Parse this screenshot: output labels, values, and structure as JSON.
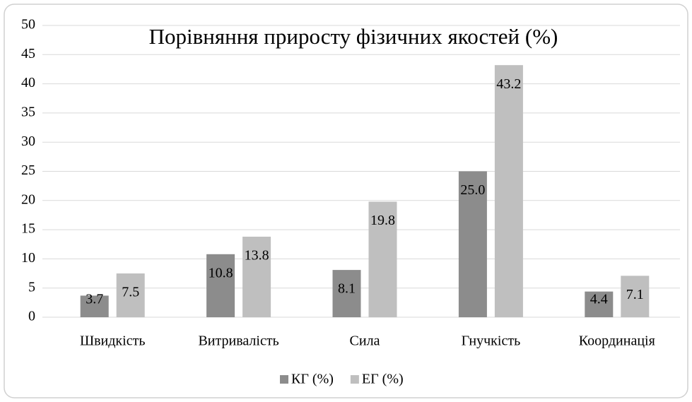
{
  "chart_data": {
    "type": "bar",
    "title": "Порівняння приросту фізичних якостей (%)",
    "categories": [
      "Швидкість",
      "Витривалість",
      "Сила",
      "Гнучкість",
      "Координація"
    ],
    "series": [
      {
        "name": "КГ (%)",
        "color": "#8c8c8c",
        "values": [
          3.7,
          10.8,
          8.1,
          25.0,
          4.4
        ],
        "value_labels": [
          "3.7",
          "10.8",
          "8.1",
          "25.0",
          "4.4"
        ]
      },
      {
        "name": "ЕГ (%)",
        "color": "#bfbfbf",
        "values": [
          7.5,
          13.8,
          19.8,
          43.2,
          7.1
        ],
        "value_labels": [
          "7.5",
          "13.8",
          "19.8",
          "43.2",
          "7.1"
        ]
      }
    ],
    "ylim": [
      0,
      50
    ],
    "yticks": [
      0,
      5,
      10,
      15,
      20,
      25,
      30,
      35,
      40,
      45,
      50
    ],
    "grid": true,
    "legend": "bottom"
  }
}
